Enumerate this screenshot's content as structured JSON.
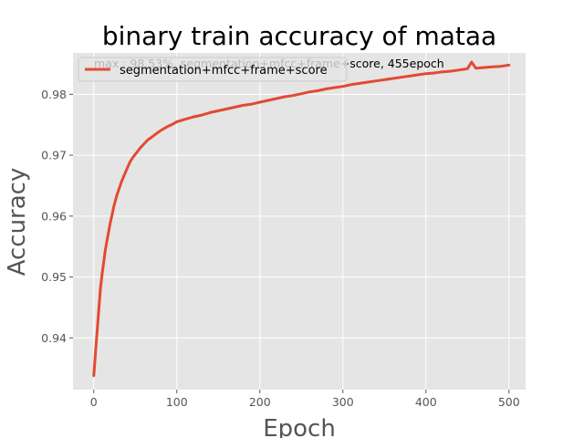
{
  "chart_data": {
    "type": "line",
    "title": "binary train accuracy of mataa",
    "xlabel": "Epoch",
    "ylabel": "Accuracy",
    "xlim": [
      -25,
      520
    ],
    "ylim": [
      0.9315,
      0.9868
    ],
    "xticks": [
      0,
      100,
      200,
      300,
      400,
      500
    ],
    "yticks": [
      0.94,
      0.95,
      0.96,
      0.97,
      0.98
    ],
    "grid": true,
    "legend": "upper-left",
    "annotation": "max : 98.53%, segmentation+mfcc+frame+score, 455epoch",
    "series": [
      {
        "name": "segmentation+mfcc+frame+score",
        "color": "#E24A33",
        "x": [
          0,
          2,
          4,
          6,
          8,
          10,
          12,
          14,
          16,
          18,
          20,
          22,
          24,
          26,
          28,
          30,
          33,
          36,
          40,
          44,
          48,
          52,
          56,
          60,
          65,
          70,
          75,
          80,
          85,
          90,
          95,
          100,
          110,
          120,
          130,
          140,
          150,
          160,
          170,
          180,
          190,
          200,
          210,
          220,
          230,
          240,
          250,
          260,
          270,
          280,
          290,
          300,
          310,
          320,
          330,
          340,
          350,
          360,
          370,
          380,
          390,
          400,
          410,
          420,
          430,
          440,
          450,
          455,
          460,
          470,
          480,
          490,
          500
        ],
        "values": [
          0.9338,
          0.9375,
          0.941,
          0.9445,
          0.948,
          0.9505,
          0.9525,
          0.9545,
          0.956,
          0.9575,
          0.959,
          0.9602,
          0.9615,
          0.9625,
          0.9635,
          0.9643,
          0.9655,
          0.9665,
          0.9678,
          0.969,
          0.9698,
          0.9705,
          0.9712,
          0.9718,
          0.9725,
          0.973,
          0.9735,
          0.974,
          0.9744,
          0.9748,
          0.9751,
          0.9755,
          0.9759,
          0.9763,
          0.9766,
          0.977,
          0.9773,
          0.9776,
          0.9779,
          0.9782,
          0.9784,
          0.9787,
          0.979,
          0.9793,
          0.9796,
          0.9798,
          0.9801,
          0.9804,
          0.9806,
          0.9809,
          0.9811,
          0.9813,
          0.9816,
          0.9818,
          0.982,
          0.9822,
          0.9824,
          0.9826,
          0.9828,
          0.983,
          0.9832,
          0.9834,
          0.9835,
          0.9837,
          0.9838,
          0.984,
          0.9842,
          0.9853,
          0.9843,
          0.9844,
          0.9845,
          0.9846,
          0.9848
        ]
      }
    ]
  }
}
